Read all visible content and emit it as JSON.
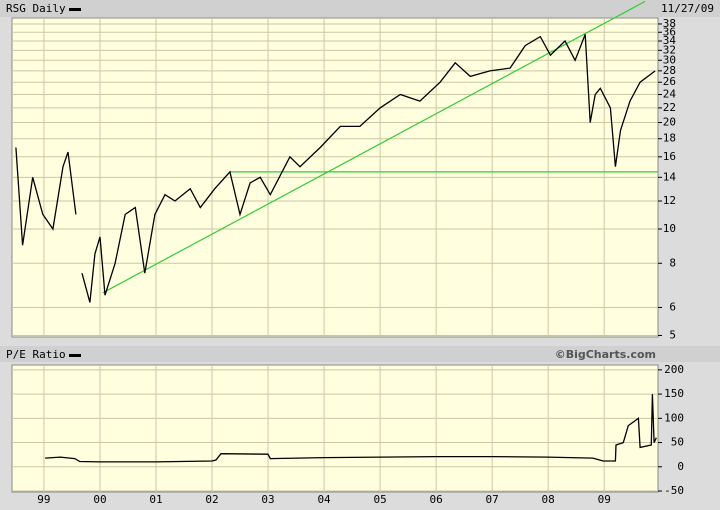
{
  "chart_data": [
    {
      "type": "line",
      "date": "11/27/09",
      "log_scale": true,
      "grid": true,
      "background": "#ffffe0",
      "xlim": [
        1998.43,
        2009.96
      ],
      "xticks": [
        {
          "value": 1999,
          "label": "99"
        },
        {
          "value": 2000,
          "label": "00"
        },
        {
          "value": 2001,
          "label": "01"
        },
        {
          "value": 2002,
          "label": "02"
        },
        {
          "value": 2003,
          "label": "03"
        },
        {
          "value": 2004,
          "label": "04"
        },
        {
          "value": 2005,
          "label": "05"
        },
        {
          "value": 2006,
          "label": "06"
        },
        {
          "value": 2007,
          "label": "07"
        },
        {
          "value": 2008,
          "label": "08"
        },
        {
          "value": 2009,
          "label": "09"
        }
      ],
      "ylim": [
        4.95,
        39.5
      ],
      "yticks": [
        5,
        6,
        8,
        10,
        12,
        14,
        16,
        18,
        20,
        22,
        24,
        26,
        28,
        30,
        32,
        34,
        36,
        38
      ],
      "series": [
        {
          "name": "RSG Daily",
          "color": "#000000",
          "x": [
            1998.5,
            1998.62,
            1998.8,
            1998.98,
            1999.16,
            1999.34,
            1999.43,
            1999.57,
            1999.64,
            1999.68,
            1999.82,
            1999.91,
            2000.0,
            2000.09,
            2000.27,
            2000.45,
            2000.63,
            2000.8,
            2000.98,
            2001.16,
            2001.34,
            2001.61,
            2001.79,
            2002.05,
            2002.32,
            2002.5,
            2002.68,
            2002.86,
            2003.04,
            2003.39,
            2003.57,
            2003.93,
            2004.29,
            2004.64,
            2005.0,
            2005.36,
            2005.71,
            2006.07,
            2006.34,
            2006.61,
            2006.96,
            2007.32,
            2007.59,
            2007.86,
            2008.04,
            2008.3,
            2008.48,
            2008.66,
            2008.75,
            2008.84,
            2008.93,
            2009.11,
            2009.2,
            2009.29,
            2009.46,
            2009.64,
            2009.91
          ],
          "values": [
            17,
            9,
            14,
            11,
            10,
            15,
            16.5,
            11,
            null,
            7.5,
            6.2,
            8.5,
            9.5,
            6.5,
            8,
            11,
            11.5,
            7.5,
            11,
            12.5,
            12,
            13,
            11.5,
            13,
            14.5,
            11,
            13.5,
            14,
            12.5,
            16,
            15,
            17,
            19.5,
            19.5,
            22,
            24,
            23,
            26,
            29.5,
            27,
            28,
            28.5,
            33,
            35,
            31,
            34,
            30,
            35.5,
            20,
            24,
            25,
            22,
            15,
            19,
            23,
            26,
            28
          ]
        }
      ],
      "trendlines": [
        {
          "color": "#33cc33",
          "x": [
            2000.05,
            2009.73
          ],
          "values": [
            6.6,
            44
          ]
        },
        {
          "color": "#33cc33",
          "x": [
            2002.32,
            2009.96
          ],
          "values": [
            14.5,
            14.5
          ]
        }
      ]
    },
    {
      "type": "line",
      "grid": true,
      "background": "#ffffe0",
      "xlim": [
        1998.43,
        2009.96
      ],
      "xticks": [
        {
          "value": 1999,
          "label": "99"
        },
        {
          "value": 2000,
          "label": "00"
        },
        {
          "value": 2001,
          "label": "01"
        },
        {
          "value": 2002,
          "label": "02"
        },
        {
          "value": 2003,
          "label": "03"
        },
        {
          "value": 2004,
          "label": "04"
        },
        {
          "value": 2005,
          "label": "05"
        },
        {
          "value": 2006,
          "label": "06"
        },
        {
          "value": 2007,
          "label": "07"
        },
        {
          "value": 2008,
          "label": "08"
        },
        {
          "value": 2009,
          "label": "09"
        }
      ],
      "ylim": [
        -52,
        210
      ],
      "yticks": [
        -50,
        0,
        50,
        100,
        150,
        200
      ],
      "series": [
        {
          "name": "P/E Ratio",
          "color": "#000000",
          "x": [
            1999.02,
            1999.29,
            1999.55,
            1999.64,
            2000.0,
            2001.0,
            2002.0,
            2002.07,
            2002.16,
            2003.0,
            2003.04,
            2004.0,
            2005.0,
            2006.0,
            2007.0,
            2008.0,
            2008.8,
            2008.98,
            2009.2,
            2009.21,
            2009.34,
            2009.43,
            2009.61,
            2009.64,
            2009.84,
            2009.86,
            2009.89,
            2009.93
          ],
          "values": [
            18,
            20,
            17,
            11,
            10,
            10,
            12,
            14,
            27,
            26,
            17,
            19,
            20,
            21,
            21,
            20,
            18,
            12,
            12,
            45,
            50,
            85,
            100,
            40,
            45,
            150,
            50,
            60
          ]
        }
      ]
    }
  ],
  "source": "©BigCharts.com"
}
